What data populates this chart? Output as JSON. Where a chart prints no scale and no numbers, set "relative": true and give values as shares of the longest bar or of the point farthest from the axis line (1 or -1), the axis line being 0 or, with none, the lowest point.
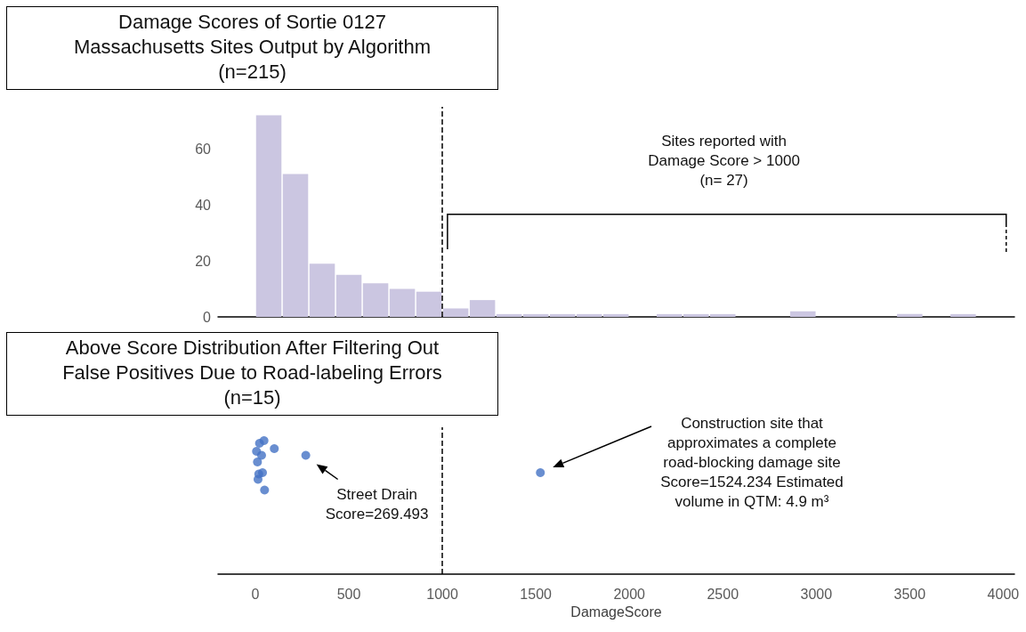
{
  "chart_data": [
    {
      "type": "histogram",
      "title": "Damage Scores of Sortie 0127 Massachusetts Sites Output by Algorithm",
      "subtitle": "(n=215)",
      "bins": [
        0,
        142.9,
        285.7,
        428.6,
        571.4,
        714.3,
        857.1,
        1000,
        1142.9,
        1285.7,
        1428.6,
        1571.4,
        1714.3,
        1857.1,
        2000,
        2142.9,
        2285.7,
        2428.6,
        2571.4,
        2714.3,
        2857.1,
        3000,
        3142.9,
        3285.7,
        3428.6,
        3571.4,
        3714.3,
        3857.1,
        4000
      ],
      "values": [
        72,
        51,
        19,
        15,
        12,
        10,
        9,
        3,
        6,
        1,
        1,
        1,
        1,
        1,
        0,
        1,
        1,
        1,
        0,
        0,
        2,
        0,
        0,
        0,
        1,
        0,
        1,
        0
      ],
      "color": "#cbc6e1",
      "xlim": [
        -200,
        4060
      ],
      "ylim": [
        0,
        75
      ],
      "yticks": [
        0,
        20,
        40,
        60
      ],
      "tick_labels": "y",
      "grid": false,
      "ref_lines": [
        {
          "axis": "x",
          "value": 1000,
          "line_style": "dashed",
          "color": "#000000"
        }
      ],
      "annotations": [
        "Sites reported with Damage Score > 1000 (n= 27)"
      ]
    },
    {
      "type": "scatter",
      "title": "Above Score Distribution After Filtering Out False Positives Due to Road-labeling Errors",
      "subtitle": "(n=15)",
      "xlabel": "DamageScore",
      "relative": true,
      "color": "#4472c4",
      "marker": "circle",
      "x": [
        46,
        22,
        6,
        33,
        101,
        11,
        38,
        18,
        14,
        49,
        269.493,
        1524.234
      ],
      "values": [
        1.0,
        0.98,
        0.92,
        0.89,
        0.94,
        0.84,
        0.76,
        0.75,
        0.71,
        0.63,
        0.89,
        0.76
      ],
      "xlim": [
        -200,
        4060
      ],
      "xticks": [
        0,
        500,
        1000,
        1500,
        2000,
        2500,
        3000,
        3500,
        4000
      ],
      "tick_labels": "x",
      "grid": false,
      "ref_lines": [
        {
          "axis": "x",
          "value": 1000,
          "line_style": "dashed",
          "color": "#000000"
        }
      ],
      "annotations": [
        {
          "text": "Street Drain Score=269.493",
          "x": 269.493,
          "y": 0.89
        },
        "Construction site that approximates a complete road-blocking damage site Score=1524.234 Estimated volume in QTM: 4.9 m³"
      ]
    }
  ]
}
